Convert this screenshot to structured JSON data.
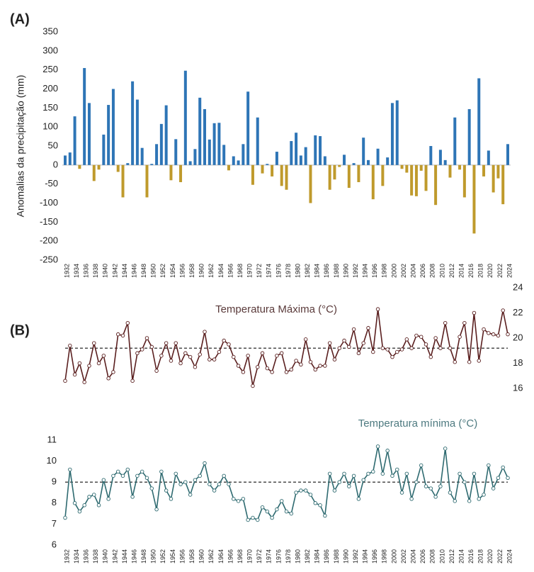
{
  "chart_data": [
    {
      "type": "bar",
      "panel_label": "(A)",
      "ylabel": "Anomalias da precipitação (mm)",
      "categories": [
        "1932",
        null,
        "1934",
        null,
        "1936",
        null,
        "1938",
        null,
        "1940",
        null,
        "1942",
        null,
        "1944",
        null,
        "1946",
        null,
        "1948",
        null,
        "1950",
        null,
        "1952",
        null,
        "1954",
        null,
        "1956",
        null,
        "1958",
        null,
        "1960",
        null,
        "1962",
        null,
        "1964",
        null,
        "1966",
        null,
        "1968",
        null,
        "1970",
        null,
        "1972",
        null,
        "1974",
        null,
        "1976",
        null,
        "1978",
        null,
        "1980",
        null,
        "1982",
        null,
        "1984",
        null,
        "1986",
        null,
        "1988",
        null,
        "1990",
        null,
        "1992",
        null,
        "1994",
        null,
        "1996",
        null,
        "1998",
        null,
        "2000",
        null,
        "2002",
        null,
        "2004",
        null,
        "2006",
        null,
        "2008",
        null,
        "2010",
        null,
        "2012",
        null,
        "2014",
        null,
        "2016",
        null,
        "2018",
        null,
        "2020",
        null,
        "2022",
        null,
        "2024"
      ],
      "values": [
        25,
        33,
        128,
        -10,
        255,
        163,
        -42,
        -12,
        80,
        158,
        200,
        -18,
        -85,
        5,
        220,
        172,
        45,
        -85,
        3,
        55,
        108,
        157,
        -40,
        68,
        -45,
        248,
        10,
        42,
        177,
        147,
        67,
        110,
        111,
        53,
        -14,
        23,
        12,
        55,
        193,
        -52,
        125,
        -22,
        3,
        -30,
        35,
        -55,
        -65,
        63,
        85,
        25,
        47,
        -100,
        78,
        76,
        23,
        -65,
        -38,
        -5,
        27,
        -60,
        5,
        -45,
        72,
        13,
        -90,
        43,
        -55,
        20,
        163,
        170,
        -10,
        -20,
        -80,
        -82,
        -15,
        -68,
        50,
        -105,
        40,
        13,
        -33,
        125,
        -12,
        -85,
        147,
        -180,
        228,
        -30,
        38,
        -72,
        -35,
        -103,
        55
      ],
      "color": "#2e75b6",
      "negative_color": "#bf9a2c",
      "ylim": [
        -250,
        350
      ],
      "yticks": [
        -250,
        -200,
        -150,
        -100,
        -50,
        0,
        50,
        100,
        150,
        200,
        250,
        300,
        350
      ]
    },
    {
      "type": "line",
      "panel_label": "(B)",
      "title": "Temperatura Máxima (°C)",
      "values": [
        16.6,
        19.4,
        17.1,
        18.0,
        16.5,
        17.8,
        19.6,
        18.0,
        18.6,
        16.8,
        17.3,
        20.3,
        20.2,
        21.2,
        16.6,
        18.8,
        19.1,
        20.0,
        19.3,
        17.4,
        18.6,
        19.6,
        18.2,
        19.6,
        18.0,
        18.8,
        18.5,
        17.7,
        18.7,
        20.5,
        18.3,
        18.3,
        18.9,
        19.8,
        19.5,
        18.5,
        17.8,
        17.3,
        18.6,
        16.2,
        17.7,
        18.8,
        17.6,
        17.3,
        18.6,
        18.8,
        17.3,
        17.5,
        18.2,
        17.9,
        19.9,
        18.1,
        17.5,
        17.8,
        17.8,
        19.6,
        18.3,
        19.2,
        19.8,
        19.3,
        20.7,
        18.8,
        19.6,
        20.8,
        18.9,
        22.3,
        19.2,
        19.1,
        18.5,
        18.9,
        19.1,
        19.9,
        19.2,
        20.2,
        20.1,
        19.5,
        18.5,
        20.0,
        19.2,
        21.2,
        19.2,
        18.1,
        20.1,
        21.2,
        18.1,
        22.0,
        18.2,
        20.7,
        20.4,
        20.3,
        20.2,
        22.2,
        20.3
      ],
      "color": "#5a1f1f",
      "title_color": "#5a3a3a",
      "y_axis_side": "right",
      "ylim": [
        16,
        24
      ],
      "yticks": [
        16,
        18,
        20,
        22,
        24
      ],
      "reference_line": 19.2
    },
    {
      "type": "line",
      "title": "Temperatura mínima (°C)",
      "categories": [
        "1932",
        null,
        "1934",
        null,
        "1936",
        null,
        "1938",
        null,
        "1940",
        null,
        "1942",
        null,
        "1944",
        null,
        "1946",
        null,
        "1948",
        null,
        "1950",
        null,
        "1952",
        null,
        "1954",
        null,
        "1956",
        null,
        "1958",
        null,
        "1960",
        null,
        "1962",
        null,
        "1964",
        null,
        "1966",
        null,
        "1968",
        null,
        "1970",
        null,
        "1972",
        null,
        "1974",
        null,
        "1976",
        null,
        "1978",
        null,
        "1980",
        null,
        "1982",
        null,
        "1984",
        null,
        "1986",
        null,
        "1988",
        null,
        "1990",
        null,
        "1992",
        null,
        "1994",
        null,
        "1996",
        null,
        "1998",
        null,
        "2000",
        null,
        "2002",
        null,
        "2004",
        null,
        "2006",
        null,
        "2008",
        null,
        "2010",
        null,
        "2012",
        null,
        "2014",
        null,
        "2016",
        null,
        "2018",
        null,
        "2020",
        null,
        "2022",
        null,
        "2024"
      ],
      "values": [
        7.3,
        9.6,
        8.0,
        7.6,
        7.9,
        8.3,
        8.4,
        7.9,
        9.1,
        8.2,
        9.3,
        9.5,
        9.3,
        9.6,
        8.3,
        9.3,
        9.5,
        9.2,
        8.7,
        7.7,
        9.5,
        8.6,
        8.2,
        9.4,
        8.9,
        9.0,
        8.4,
        9.1,
        9.3,
        9.9,
        8.9,
        8.6,
        8.9,
        9.3,
        8.9,
        8.2,
        8.1,
        8.2,
        7.2,
        7.3,
        7.2,
        7.8,
        7.6,
        7.3,
        7.7,
        8.1,
        7.6,
        7.5,
        8.5,
        8.6,
        8.6,
        8.4,
        8.0,
        7.9,
        7.4,
        9.4,
        8.6,
        9.0,
        9.4,
        8.8,
        9.3,
        8.2,
        9.1,
        9.4,
        9.5,
        10.7,
        9.4,
        10.5,
        9.3,
        9.6,
        8.5,
        9.4,
        8.2,
        9.0,
        9.8,
        8.8,
        8.7,
        8.3,
        8.8,
        10.6,
        8.5,
        8.1,
        9.4,
        9.0,
        8.1,
        9.4,
        8.2,
        8.4,
        9.8,
        8.7,
        9.2,
        9.7,
        9.2
      ],
      "color": "#2e6a70",
      "title_color": "#4e7a80",
      "y_axis_side": "left",
      "ylim": [
        6,
        11
      ],
      "yticks": [
        6,
        7,
        8,
        9,
        10,
        11
      ],
      "reference_line": 9.0
    }
  ]
}
